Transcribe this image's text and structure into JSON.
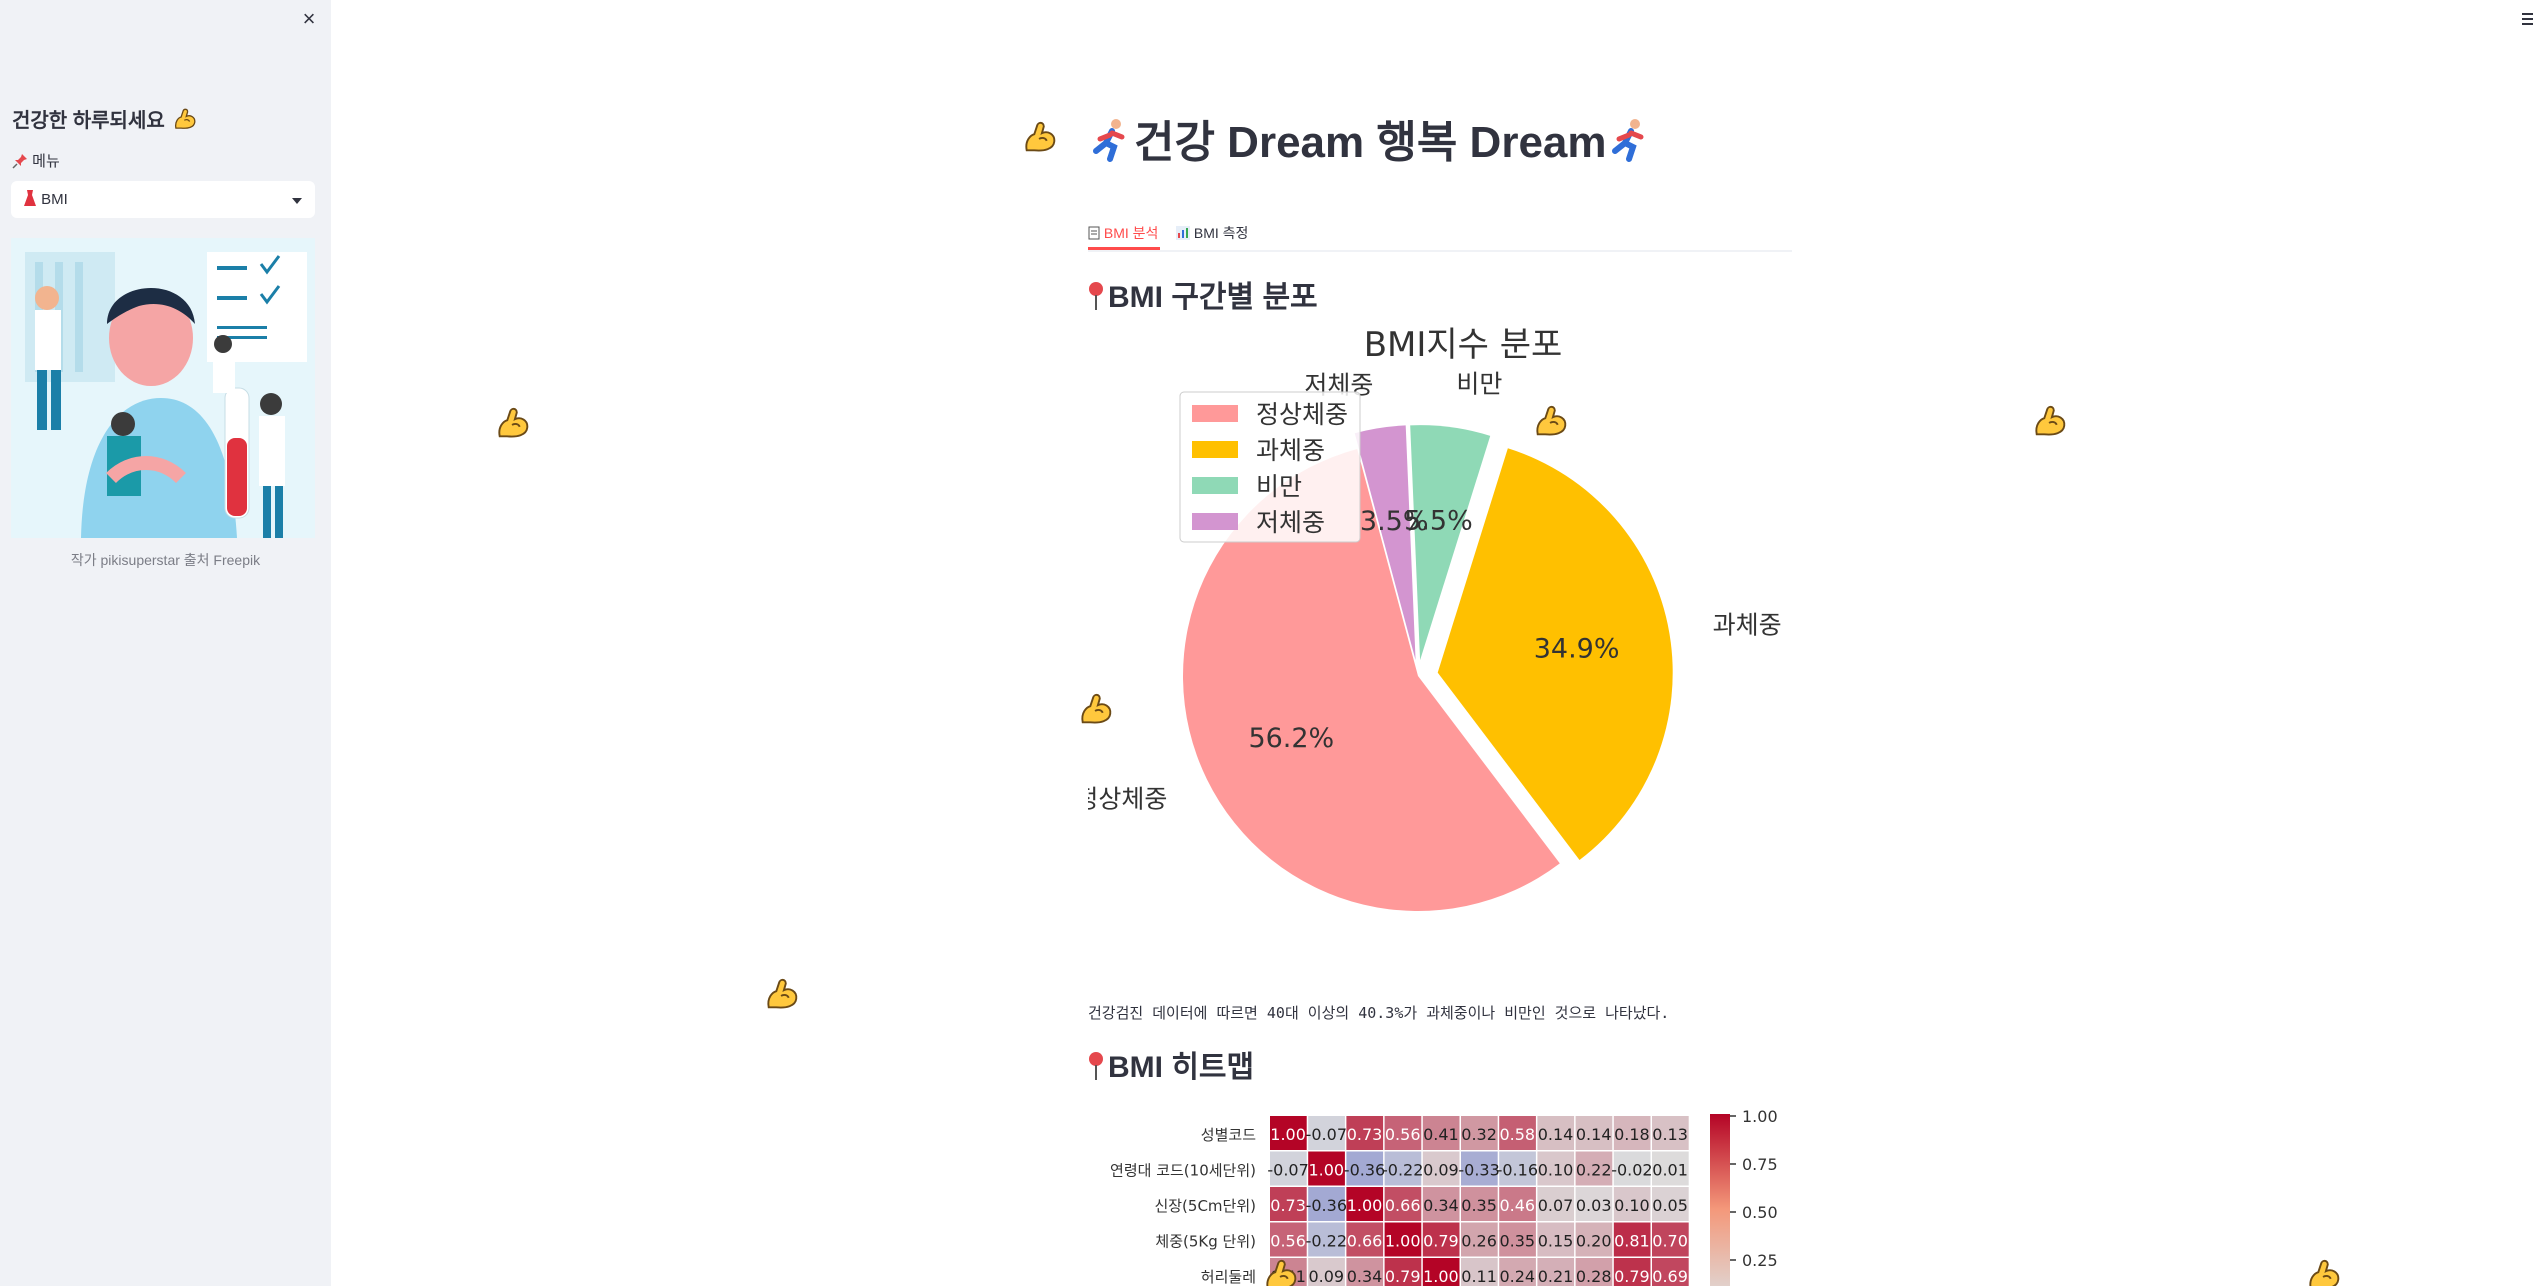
{
  "sidebar": {
    "close_glyph": "×",
    "title": "건강한 하루되세요",
    "menu_label": "메뉴",
    "menu_selected": "BMI",
    "caption": "작가 pikisuperstar 출처 Freepik"
  },
  "header": {
    "title": "건강 Dream 행복 Dream"
  },
  "tabs": [
    {
      "label": "BMI 분석",
      "active": true
    },
    {
      "label": "BMI 측정",
      "active": false
    }
  ],
  "sections": {
    "distribution_title": "BMI 구간별 분포",
    "heatmap_title": "BMI 히트맵",
    "description": "건강검진 데이터에 따르면 40대 이상의 40.3%가 과체중이나 비만인 것으로 나타났다."
  },
  "icons": {
    "float": "flexed-biceps-icon",
    "runner": "running-person-icon",
    "pin": "round-pushpin-icon"
  },
  "colors": {
    "accent": "#ff4b4b",
    "normal": "#ff9999",
    "overweight": "#ffc000",
    "obese": "#8fd9b6",
    "underweight": "#d395d0"
  },
  "chart_data": [
    {
      "type": "pie",
      "title": "BMI지수 분포",
      "labels": [
        "정상체중",
        "과체중",
        "비만",
        "저체중"
      ],
      "values": [
        56.2,
        34.9,
        5.5,
        3.5
      ],
      "value_labels": [
        "56.2%",
        "34.9%",
        "5.5%",
        "3.5%"
      ],
      "colors": [
        "#ff9999",
        "#ffc000",
        "#8fd9b6",
        "#d395d0"
      ],
      "legend": "upper-left",
      "legend_entries": [
        "정상체중",
        "과체중",
        "비만",
        "저체중"
      ]
    },
    {
      "type": "heatmap",
      "rows": [
        "성별코드",
        "연령대 코드(10세단위)",
        "신장(5Cm단위)",
        "체중(5Kg 단위)",
        "허리둘레"
      ],
      "values": [
        [
          "1.00",
          "-0.07",
          "0.73",
          "0.56",
          "0.41",
          "0.32",
          "0.58",
          "0.14",
          "0.14",
          "0.18",
          "0.13"
        ],
        [
          "-0.07",
          "1.00",
          "-0.36",
          "-0.22",
          "0.09",
          "-0.33",
          "-0.16",
          "0.10",
          "0.22",
          "-0.02",
          "0.01"
        ],
        [
          "0.73",
          "-0.36",
          "1.00",
          "0.66",
          "0.34",
          "0.35",
          "0.46",
          "0.07",
          "0.03",
          "0.10",
          "0.05"
        ],
        [
          "0.56",
          "-0.22",
          "0.66",
          "1.00",
          "0.79",
          "0.26",
          "0.35",
          "0.15",
          "0.20",
          "0.81",
          "0.70"
        ],
        [
          "0.41",
          "0.09",
          "0.34",
          "0.79",
          "1.00",
          "0.11",
          "0.24",
          "0.21",
          "0.28",
          "0.79",
          "0.69"
        ]
      ],
      "colorbar_ticks": [
        "1.00",
        "0.75",
        "0.50",
        "0.25"
      ]
    }
  ]
}
